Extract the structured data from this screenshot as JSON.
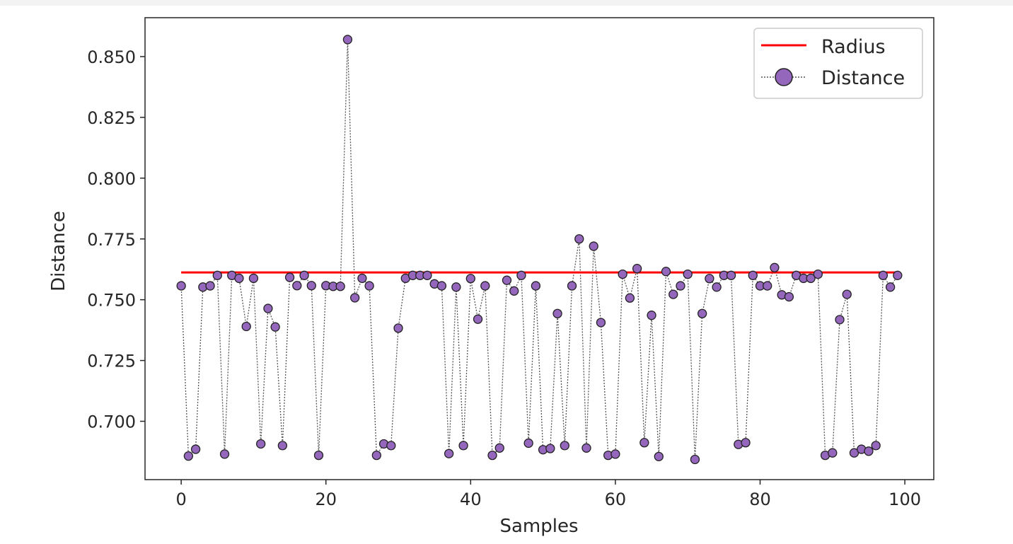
{
  "chart_data": {
    "type": "line",
    "title": "",
    "xlabel": "Samples",
    "ylabel": "Distance",
    "xlim": [
      -5,
      104
    ],
    "ylim": [
      0.676,
      0.866
    ],
    "xticks": [
      0,
      20,
      40,
      60,
      80,
      100
    ],
    "xtick_labels": [
      "0",
      "20",
      "40",
      "60",
      "80",
      "100"
    ],
    "yticks": [
      0.7,
      0.725,
      0.75,
      0.775,
      0.8,
      0.825,
      0.85
    ],
    "ytick_labels": [
      "0.700",
      "0.725",
      "0.750",
      "0.775",
      "0.800",
      "0.825",
      "0.850"
    ],
    "grid": false,
    "legend_position": "upper right",
    "series": [
      {
        "name": "Radius",
        "style": "solid-line",
        "color": "#ff0000",
        "x": [
          0,
          99
        ],
        "values": [
          0.7612,
          0.7612
        ]
      },
      {
        "name": "Distance",
        "style": "dotted-line-with-markers",
        "line_color": "#555555",
        "marker_color": "#9467bd",
        "x": [
          0,
          1,
          2,
          3,
          4,
          5,
          6,
          7,
          8,
          9,
          10,
          11,
          12,
          13,
          14,
          15,
          16,
          17,
          18,
          19,
          20,
          21,
          22,
          23,
          24,
          25,
          26,
          27,
          28,
          29,
          30,
          31,
          32,
          33,
          34,
          35,
          36,
          37,
          38,
          39,
          40,
          41,
          42,
          43,
          44,
          45,
          46,
          47,
          48,
          49,
          50,
          51,
          52,
          53,
          54,
          55,
          56,
          57,
          58,
          59,
          60,
          61,
          62,
          63,
          64,
          65,
          66,
          67,
          68,
          69,
          70,
          71,
          72,
          73,
          74,
          75,
          76,
          77,
          78,
          79,
          80,
          81,
          82,
          83,
          84,
          85,
          86,
          87,
          88,
          89,
          90,
          91,
          92,
          93,
          94,
          95,
          96,
          97,
          98,
          99
        ],
        "values": [
          0.7557,
          0.6857,
          0.6885,
          0.7552,
          0.7557,
          0.76,
          0.6865,
          0.76,
          0.7588,
          0.739,
          0.7588,
          0.6907,
          0.7464,
          0.7388,
          0.69,
          0.7592,
          0.7558,
          0.76,
          0.7558,
          0.686,
          0.7558,
          0.7555,
          0.7555,
          0.857,
          0.7508,
          0.7588,
          0.7557,
          0.686,
          0.6907,
          0.69,
          0.7383,
          0.7588,
          0.76,
          0.76,
          0.76,
          0.7565,
          0.7557,
          0.6867,
          0.7552,
          0.69,
          0.7587,
          0.742,
          0.7557,
          0.686,
          0.689,
          0.758,
          0.7536,
          0.76,
          0.691,
          0.7557,
          0.6883,
          0.6888,
          0.7443,
          0.69,
          0.7557,
          0.775,
          0.689,
          0.772,
          0.7406,
          0.686,
          0.6865,
          0.7605,
          0.7507,
          0.7628,
          0.6912,
          0.7436,
          0.6855,
          0.7616,
          0.7522,
          0.7557,
          0.7605,
          0.6843,
          0.7443,
          0.7587,
          0.7552,
          0.76,
          0.76,
          0.6905,
          0.6912,
          0.76,
          0.7557,
          0.7557,
          0.7632,
          0.752,
          0.7512,
          0.76,
          0.7588,
          0.7588,
          0.7605,
          0.686,
          0.687,
          0.7418,
          0.7522,
          0.687,
          0.6885,
          0.6877,
          0.69,
          0.76,
          0.7552,
          0.76
        ]
      }
    ]
  }
}
